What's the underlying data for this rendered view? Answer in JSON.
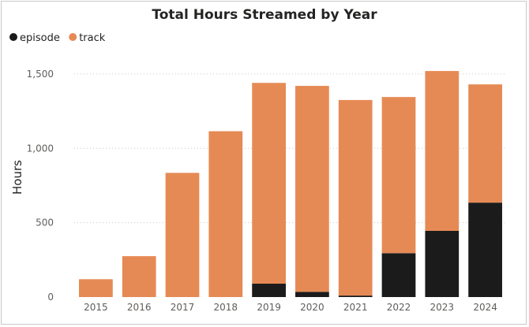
{
  "chart_data": {
    "type": "bar",
    "stacked": true,
    "title": "Total Hours Streamed by Year",
    "xlabel": "",
    "ylabel": "Hours",
    "ylim": [
      0,
      1600
    ],
    "yticks": [
      0,
      500,
      1000,
      1500
    ],
    "ytick_labels": [
      "0",
      "500",
      "1,000",
      "1,500"
    ],
    "grid": "horizontal dotted",
    "legend_position": "top-left",
    "categories": [
      "2015",
      "2016",
      "2017",
      "2018",
      "2019",
      "2020",
      "2021",
      "2022",
      "2023",
      "2024"
    ],
    "series": [
      {
        "name": "episode",
        "color": "#1b1b1b",
        "values": [
          0,
          0,
          0,
          0,
          90,
          35,
          10,
          295,
          445,
          635
        ]
      },
      {
        "name": "track",
        "color": "#e68a55",
        "values": [
          120,
          275,
          835,
          1115,
          1350,
          1385,
          1315,
          1050,
          1075,
          795
        ]
      }
    ]
  }
}
